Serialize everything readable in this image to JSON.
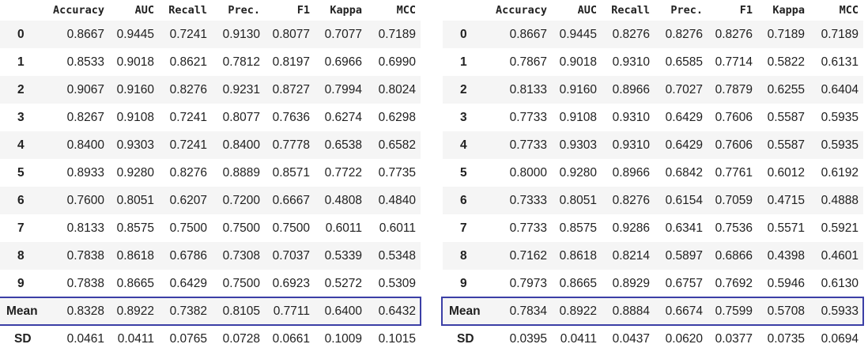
{
  "columns": [
    "",
    "Accuracy",
    "AUC",
    "Recall",
    "Prec.",
    "F1",
    "Kappa",
    "MCC"
  ],
  "left_table": {
    "rows": [
      {
        "index": "0",
        "values": [
          "0.8667",
          "0.9445",
          "0.7241",
          "0.9130",
          "0.8077",
          "0.7077",
          "0.7189"
        ]
      },
      {
        "index": "1",
        "values": [
          "0.8533",
          "0.9018",
          "0.8621",
          "0.7812",
          "0.8197",
          "0.6966",
          "0.6990"
        ]
      },
      {
        "index": "2",
        "values": [
          "0.9067",
          "0.9160",
          "0.8276",
          "0.9231",
          "0.8727",
          "0.7994",
          "0.8024"
        ]
      },
      {
        "index": "3",
        "values": [
          "0.8267",
          "0.9108",
          "0.7241",
          "0.8077",
          "0.7636",
          "0.6274",
          "0.6298"
        ]
      },
      {
        "index": "4",
        "values": [
          "0.8400",
          "0.9303",
          "0.7241",
          "0.8400",
          "0.7778",
          "0.6538",
          "0.6582"
        ]
      },
      {
        "index": "5",
        "values": [
          "0.8933",
          "0.9280",
          "0.8276",
          "0.8889",
          "0.8571",
          "0.7722",
          "0.7735"
        ]
      },
      {
        "index": "6",
        "values": [
          "0.7600",
          "0.8051",
          "0.6207",
          "0.7200",
          "0.6667",
          "0.4808",
          "0.4840"
        ]
      },
      {
        "index": "7",
        "values": [
          "0.8133",
          "0.8575",
          "0.7500",
          "0.7500",
          "0.7500",
          "0.6011",
          "0.6011"
        ]
      },
      {
        "index": "8",
        "values": [
          "0.7838",
          "0.8618",
          "0.6786",
          "0.7308",
          "0.7037",
          "0.5339",
          "0.5348"
        ]
      },
      {
        "index": "9",
        "values": [
          "0.7838",
          "0.8665",
          "0.6429",
          "0.7500",
          "0.6923",
          "0.5272",
          "0.5309"
        ]
      },
      {
        "index": "Mean",
        "values": [
          "0.8328",
          "0.8922",
          "0.7382",
          "0.8105",
          "0.7711",
          "0.6400",
          "0.6432"
        ]
      },
      {
        "index": "SD",
        "values": [
          "0.0461",
          "0.0411",
          "0.0765",
          "0.0728",
          "0.0661",
          "0.1009",
          "0.1015"
        ]
      }
    ]
  },
  "right_table": {
    "rows": [
      {
        "index": "0",
        "values": [
          "0.8667",
          "0.9445",
          "0.8276",
          "0.8276",
          "0.8276",
          "0.7189",
          "0.7189"
        ]
      },
      {
        "index": "1",
        "values": [
          "0.7867",
          "0.9018",
          "0.9310",
          "0.6585",
          "0.7714",
          "0.5822",
          "0.6131"
        ]
      },
      {
        "index": "2",
        "values": [
          "0.8133",
          "0.9160",
          "0.8966",
          "0.7027",
          "0.7879",
          "0.6255",
          "0.6404"
        ]
      },
      {
        "index": "3",
        "values": [
          "0.7733",
          "0.9108",
          "0.9310",
          "0.6429",
          "0.7606",
          "0.5587",
          "0.5935"
        ]
      },
      {
        "index": "4",
        "values": [
          "0.7733",
          "0.9303",
          "0.9310",
          "0.6429",
          "0.7606",
          "0.5587",
          "0.5935"
        ]
      },
      {
        "index": "5",
        "values": [
          "0.8000",
          "0.9280",
          "0.8966",
          "0.6842",
          "0.7761",
          "0.6012",
          "0.6192"
        ]
      },
      {
        "index": "6",
        "values": [
          "0.7333",
          "0.8051",
          "0.8276",
          "0.6154",
          "0.7059",
          "0.4715",
          "0.4888"
        ]
      },
      {
        "index": "7",
        "values": [
          "0.7733",
          "0.8575",
          "0.9286",
          "0.6341",
          "0.7536",
          "0.5571",
          "0.5921"
        ]
      },
      {
        "index": "8",
        "values": [
          "0.7162",
          "0.8618",
          "0.8214",
          "0.5897",
          "0.6866",
          "0.4398",
          "0.4601"
        ]
      },
      {
        "index": "9",
        "values": [
          "0.7973",
          "0.8665",
          "0.8929",
          "0.6757",
          "0.7692",
          "0.5946",
          "0.6130"
        ]
      },
      {
        "index": "Mean",
        "values": [
          "0.7834",
          "0.8922",
          "0.8884",
          "0.6674",
          "0.7599",
          "0.5708",
          "0.5933"
        ]
      },
      {
        "index": "SD",
        "values": [
          "0.0395",
          "0.0411",
          "0.0437",
          "0.0620",
          "0.0377",
          "0.0735",
          "0.0694"
        ]
      }
    ]
  },
  "colors": {
    "highlight_border": "#3b3fa6",
    "stripe": "#f5f5f5",
    "text": "#212121"
  }
}
